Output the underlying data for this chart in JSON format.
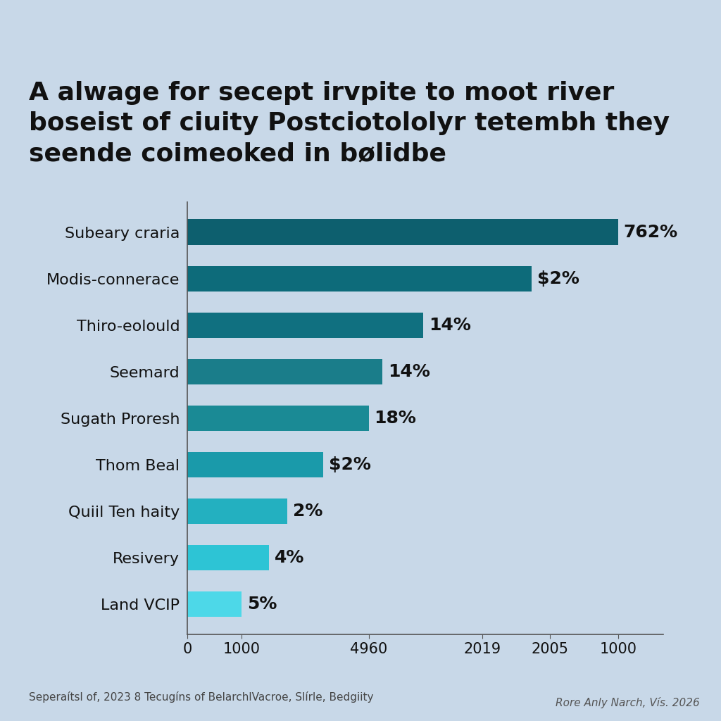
{
  "title": "A alwage for secept irvpite to moot river\nboseist of ciuity Postciotololyr tetembh they\nseende coimeoked in bølidbe",
  "categories": [
    "Subeary craria",
    "Modis-connerace",
    "Thiro-eolould",
    "Seemard",
    "Sugath Proresh",
    "Thom Beal",
    "Quiil Ten haity",
    "Resivery",
    "Land VCIP"
  ],
  "values": [
    95,
    76,
    52,
    43,
    40,
    30,
    22,
    18,
    12
  ],
  "labels": [
    "762%",
    "$2%",
    "14%",
    "14%",
    "18%",
    "$2%",
    "2%",
    "4%",
    "5%"
  ],
  "bar_colors": [
    "#0d5f6e",
    "#0d6b7a",
    "#107080",
    "#1a7d8a",
    "#1a8a95",
    "#1a9aaa",
    "#23b0c0",
    "#2dc4d5",
    "#4dd8e8"
  ],
  "background_color": "#c8d8e8",
  "axis_line_color": "#555555",
  "label_color": "#111111",
  "title_color": "#111111",
  "xtick_labels": [
    "0",
    "1000",
    "4960",
    "2019",
    "2005",
    "1000"
  ],
  "xtick_positions": [
    0,
    12,
    40,
    65,
    80,
    95
  ],
  "footnote_left": "Seperaítsl of, 2023 8 Tecugíns of BelarchlVacroe, Slírle, Bedgiity",
  "footnote_right": "Rore Anly Narch, Vís. 2026",
  "figsize": [
    10.24,
    10.24
  ],
  "dpi": 100,
  "title_fontsize": 26,
  "label_fontsize": 18,
  "tick_fontsize": 15,
  "ytick_fontsize": 16,
  "footnote_fontsize": 11,
  "bar_height": 0.55
}
